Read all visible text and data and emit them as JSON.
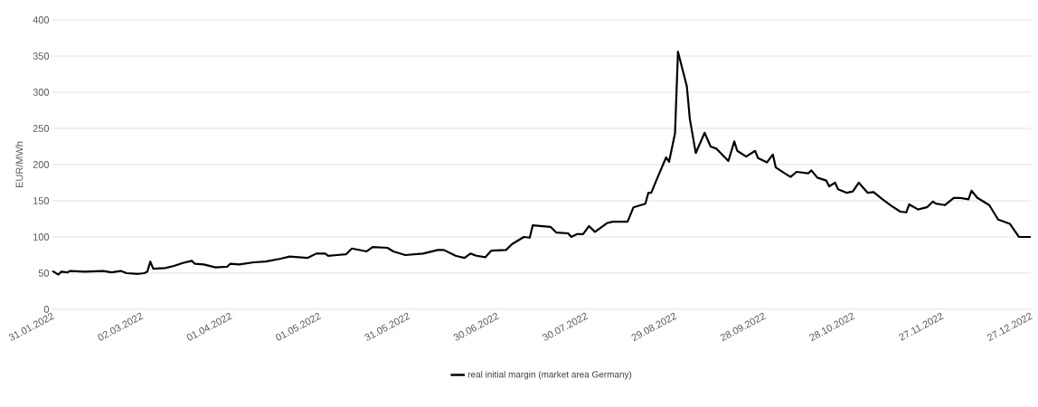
{
  "chart_data": {
    "type": "line",
    "ylabel": "EUR/MWh",
    "ylim": [
      0,
      400
    ],
    "yticks": [
      0,
      50,
      100,
      150,
      200,
      250,
      300,
      350,
      400
    ],
    "xlim": [
      "2022-01-31",
      "2022-12-27"
    ],
    "xticks": [
      {
        "value": "2022-01-31",
        "label": "31.01.2022"
      },
      {
        "value": "2022-03-02",
        "label": "02.03.2022"
      },
      {
        "value": "2022-04-01",
        "label": "01.04.2022"
      },
      {
        "value": "2022-05-01",
        "label": "01.05.2022"
      },
      {
        "value": "2022-05-31",
        "label": "31.05.2022"
      },
      {
        "value": "2022-06-30",
        "label": "30.06.2022"
      },
      {
        "value": "2022-07-30",
        "label": "30.07.2022"
      },
      {
        "value": "2022-08-29",
        "label": "29.08.2022"
      },
      {
        "value": "2022-09-28",
        "label": "28.09.2022"
      },
      {
        "value": "2022-10-28",
        "label": "28.10.2022"
      },
      {
        "value": "2022-11-27",
        "label": "27.11.2022"
      },
      {
        "value": "2022-12-27",
        "label": "27.12.2022"
      }
    ],
    "grid": "y",
    "legend": "bottom",
    "marker": "none",
    "line_style": "solid",
    "x": [
      "2022-01-31",
      "2022-02-02",
      "2022-02-03",
      "2022-02-05",
      "2022-02-06",
      "2022-02-11",
      "2022-02-17",
      "2022-02-20",
      "2022-02-23",
      "2022-02-25",
      "2022-03-01",
      "2022-03-03",
      "2022-03-04",
      "2022-03-05",
      "2022-03-06",
      "2022-03-10",
      "2022-03-13",
      "2022-03-16",
      "2022-03-19",
      "2022-03-20",
      "2022-03-23",
      "2022-03-27",
      "2022-03-31",
      "2022-04-01",
      "2022-04-04",
      "2022-04-09",
      "2022-04-13",
      "2022-04-18",
      "2022-04-21",
      "2022-04-24",
      "2022-04-27",
      "2022-04-30",
      "2022-05-03",
      "2022-05-04",
      "2022-05-07",
      "2022-05-10",
      "2022-05-12",
      "2022-05-17",
      "2022-05-19",
      "2022-05-24",
      "2022-05-26",
      "2022-05-30",
      "2022-06-05",
      "2022-06-10",
      "2022-06-12",
      "2022-06-16",
      "2022-06-19",
      "2022-06-21",
      "2022-06-23",
      "2022-06-26",
      "2022-06-28",
      "2022-07-03",
      "2022-07-05",
      "2022-07-09",
      "2022-07-11",
      "2022-07-12",
      "2022-07-18",
      "2022-07-20",
      "2022-07-24",
      "2022-07-25",
      "2022-07-27",
      "2022-07-29",
      "2022-07-31",
      "2022-08-02",
      "2022-08-06",
      "2022-08-08",
      "2022-08-13",
      "2022-08-15",
      "2022-08-19",
      "2022-08-20",
      "2022-08-21",
      "2022-08-23",
      "2022-08-26",
      "2022-08-27",
      "2022-08-29",
      "2022-08-30",
      "2022-09-02",
      "2022-09-03",
      "2022-09-05",
      "2022-09-08",
      "2022-09-10",
      "2022-09-12",
      "2022-09-16",
      "2022-09-18",
      "2022-09-19",
      "2022-09-22",
      "2022-09-25",
      "2022-09-26",
      "2022-09-29",
      "2022-10-01",
      "2022-10-02",
      "2022-10-05",
      "2022-10-07",
      "2022-10-09",
      "2022-10-13",
      "2022-10-14",
      "2022-10-16",
      "2022-10-19",
      "2022-10-20",
      "2022-10-22",
      "2022-10-23",
      "2022-10-26",
      "2022-10-28",
      "2022-10-30",
      "2022-11-02",
      "2022-11-04",
      "2022-11-07",
      "2022-11-10",
      "2022-11-13",
      "2022-11-15",
      "2022-11-16",
      "2022-11-19",
      "2022-11-22",
      "2022-11-24",
      "2022-11-25",
      "2022-11-28",
      "2022-12-01",
      "2022-12-03",
      "2022-12-06",
      "2022-12-07",
      "2022-12-09",
      "2022-12-13",
      "2022-12-16",
      "2022-12-20",
      "2022-12-23",
      "2022-12-27"
    ],
    "series": [
      {
        "name": "real initial margin (market area Germany)",
        "color": "#000000",
        "values": [
          53,
          48,
          52,
          51,
          53,
          52,
          53,
          51,
          53,
          50,
          49,
          50,
          52,
          66,
          56,
          57,
          60,
          64,
          67,
          63,
          62,
          58,
          59,
          63,
          62,
          65,
          66,
          70,
          73,
          72,
          71,
          77,
          77,
          74,
          75,
          76,
          84,
          80,
          86,
          85,
          80,
          75,
          77,
          82,
          82,
          74,
          71,
          77,
          74,
          72,
          81,
          82,
          90,
          100,
          99,
          116,
          114,
          106,
          105,
          100,
          104,
          104,
          115,
          107,
          119,
          121,
          121,
          141,
          146,
          161,
          161,
          181,
          210,
          204,
          243,
          356,
          308,
          263,
          216,
          244,
          225,
          222,
          205,
          232,
          219,
          211,
          219,
          209,
          203,
          214,
          196,
          188,
          183,
          190,
          188,
          192,
          182,
          178,
          170,
          175,
          166,
          161,
          163,
          175,
          161,
          162,
          152,
          143,
          135,
          134,
          145,
          138,
          141,
          149,
          146,
          144,
          154,
          154,
          152,
          164,
          154,
          144,
          124,
          118,
          100,
          100
        ]
      }
    ]
  }
}
